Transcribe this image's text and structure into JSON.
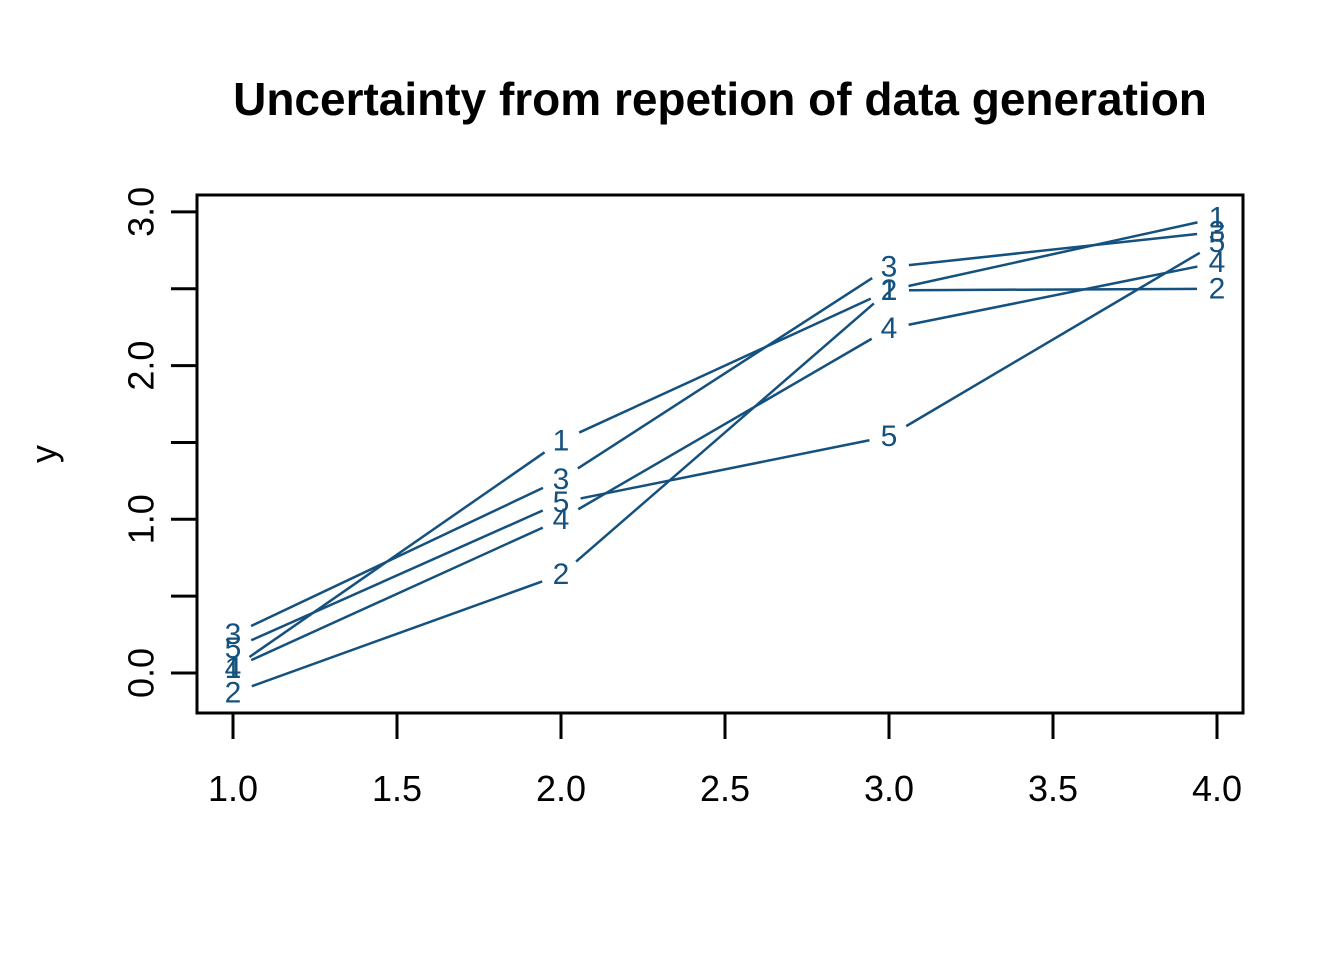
{
  "title": "Uncertainty from repetion of data generation",
  "axes": {
    "x": {
      "label": "",
      "ticks": [
        1.0,
        1.5,
        2.0,
        2.5,
        3.0,
        3.5,
        4.0
      ],
      "tick_labels": [
        "1.0",
        "1.5",
        "2.0",
        "2.5",
        "3.0",
        "3.5",
        "4.0"
      ]
    },
    "y": {
      "label": "y",
      "ticks": [
        0.0,
        0.5,
        1.0,
        1.5,
        2.0,
        2.5,
        3.0
      ],
      "tick_labels": [
        "0.0",
        "",
        "1.0",
        "",
        "2.0",
        "",
        "3.0"
      ]
    }
  },
  "colors": {
    "series": "#15517f",
    "axis": "#000000",
    "background": "#ffffff"
  },
  "chart_data": {
    "type": "line",
    "title": "Uncertainty from repetion of data generation",
    "xlabel": "",
    "ylabel": "y",
    "x": [
      1,
      2,
      3,
      4
    ],
    "series": [
      {
        "name": "1",
        "values": [
          0.03,
          1.51,
          2.49,
          2.96
        ]
      },
      {
        "name": "2",
        "values": [
          -0.13,
          0.64,
          2.49,
          2.5
        ]
      },
      {
        "name": "3",
        "values": [
          0.25,
          1.26,
          2.64,
          2.87
        ]
      },
      {
        "name": "4",
        "values": [
          0.03,
          1.0,
          2.24,
          2.67
        ]
      },
      {
        "name": "5",
        "values": [
          0.16,
          1.11,
          1.54,
          2.8
        ]
      }
    ],
    "xlim": [
      0.89,
      4.08
    ],
    "ylim": [
      -0.26,
      3.11
    ],
    "grid": false,
    "legend": "none",
    "point_style": "numbered-labels",
    "line_color": "#15517f"
  }
}
